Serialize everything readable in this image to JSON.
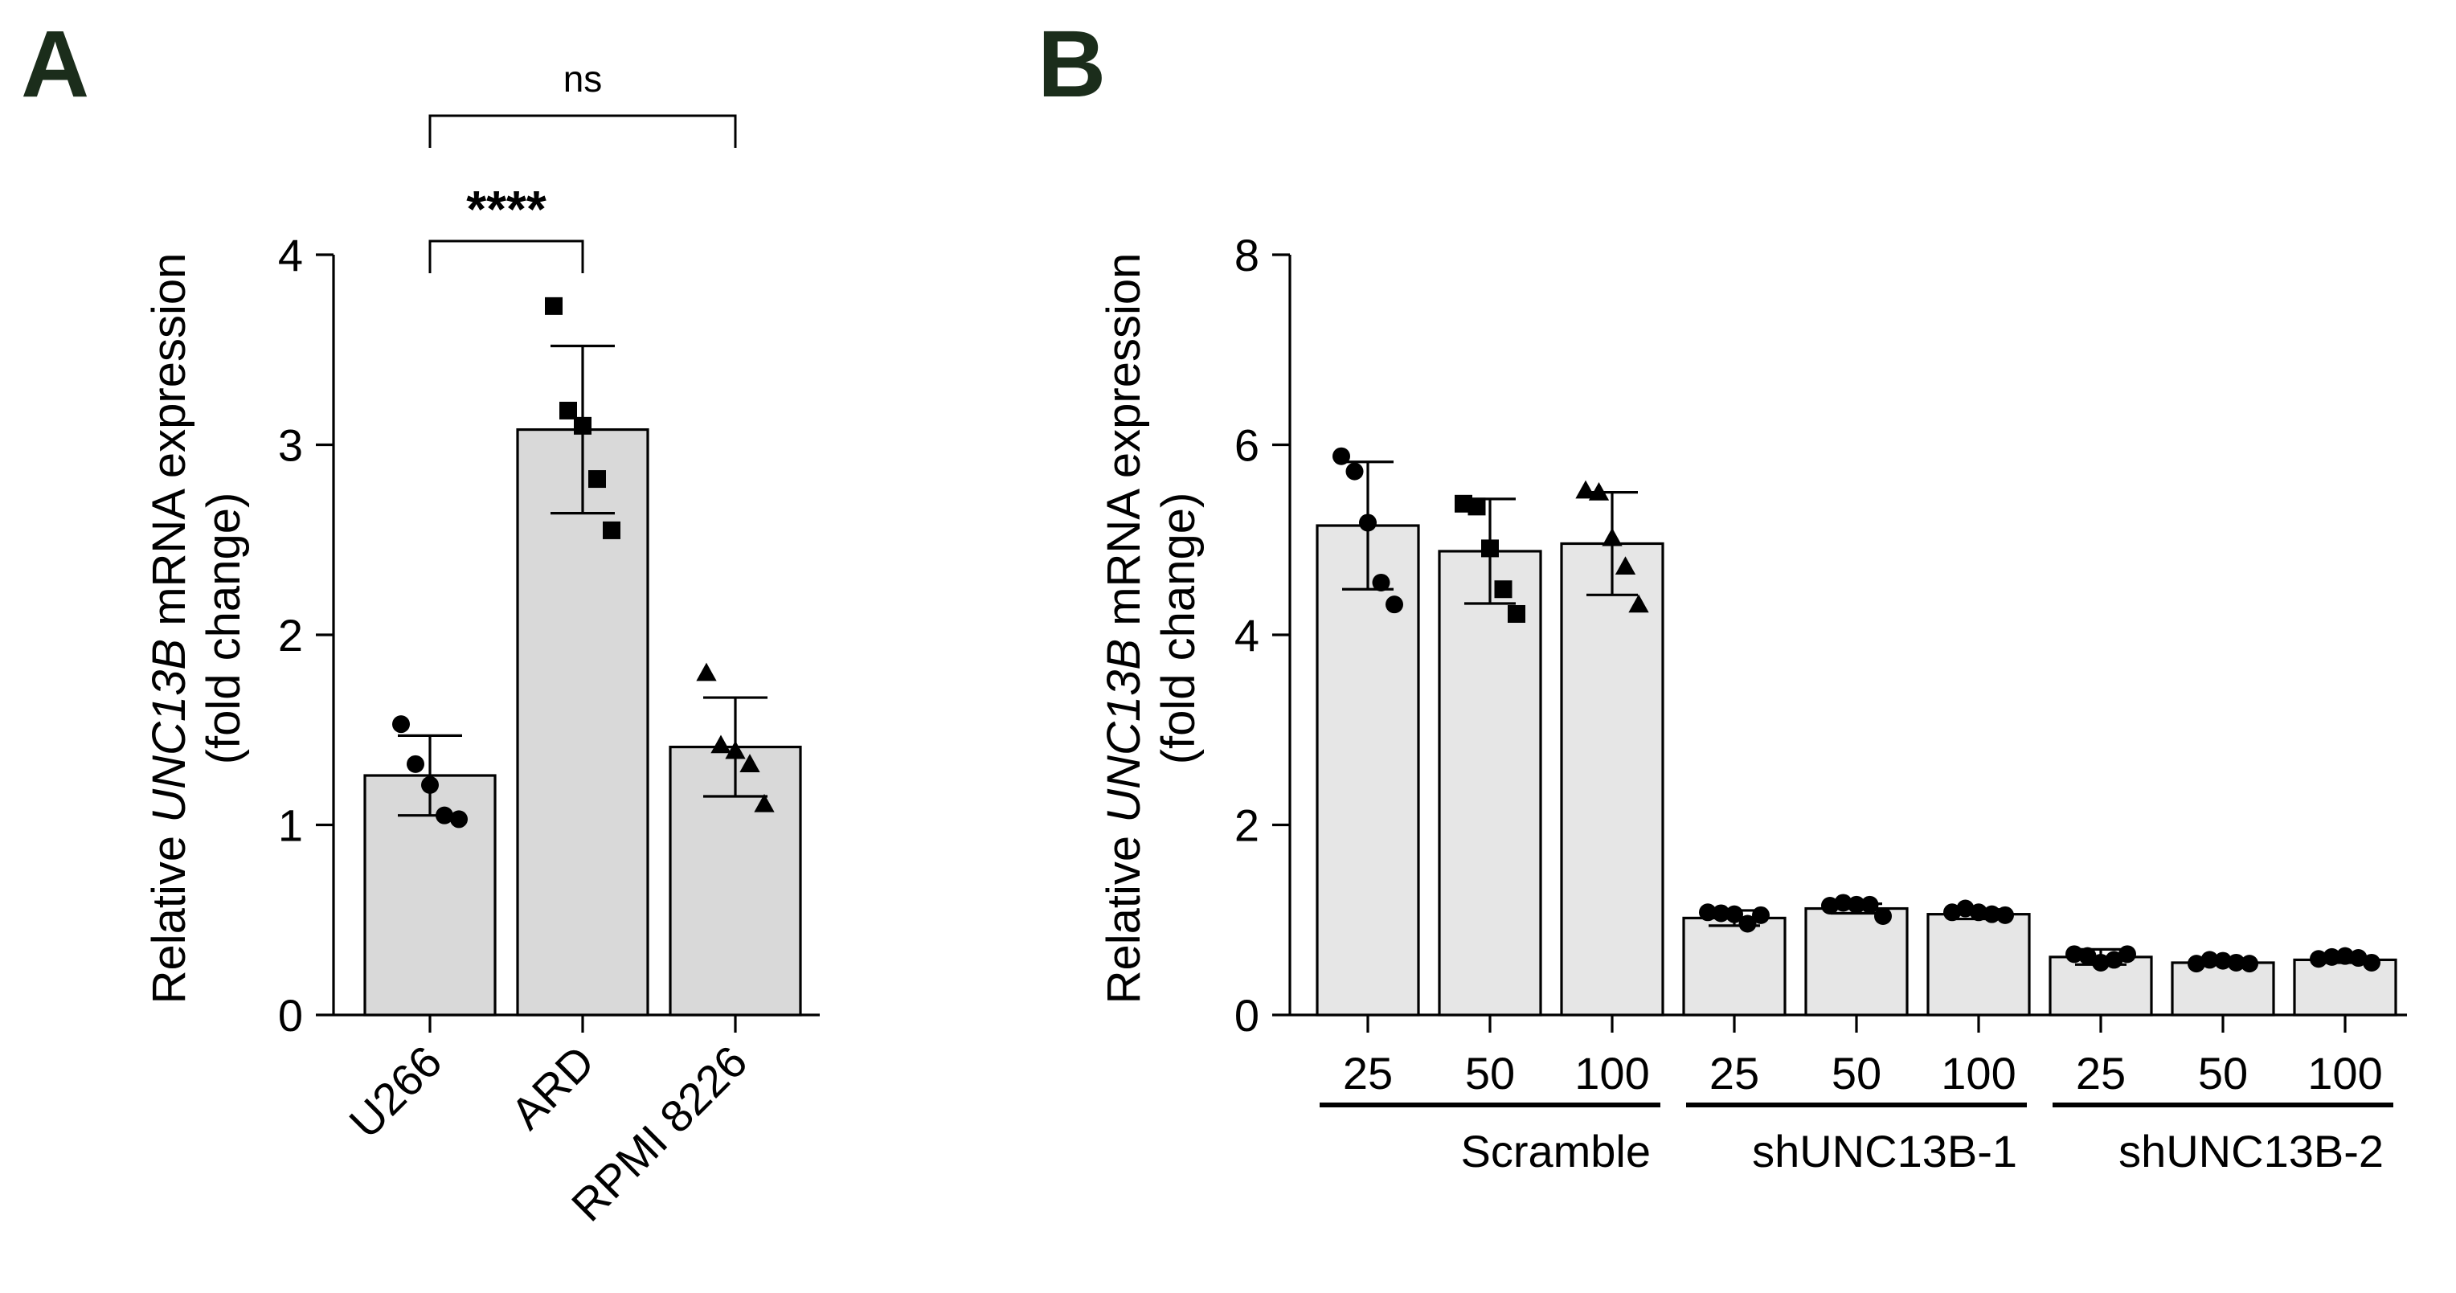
{
  "panels": {
    "a": {
      "letter": "A"
    },
    "b": {
      "letter": "B"
    }
  },
  "chart_data": [
    {
      "type": "bar",
      "panel": "A",
      "title": "",
      "xlabel": "",
      "ylabel_parts": [
        "Relative ",
        "UNC13B",
        " mRNA expression"
      ],
      "ylabel_line2": "(fold change)",
      "ylim": [
        0,
        4
      ],
      "yticks": [
        "0",
        "1",
        "2",
        "3",
        "4"
      ],
      "categories": [
        "U266",
        "ARD",
        "RPMI 8226"
      ],
      "bar_color": "#d9d9d9",
      "values": [
        1.26,
        3.08,
        1.41
      ],
      "errors": [
        0.21,
        0.44,
        0.26
      ],
      "markers": [
        "circle",
        "square",
        "triangle"
      ],
      "points": [
        [
          1.53,
          1.32,
          1.21,
          1.05,
          1.03
        ],
        [
          3.73,
          3.18,
          3.1,
          2.82,
          2.55
        ],
        [
          1.8,
          1.42,
          1.39,
          1.32,
          1.11
        ]
      ],
      "significance": [
        {
          "label": "****",
          "from": 0,
          "to": 1
        },
        {
          "label": "ns",
          "from": 0,
          "to": 2
        }
      ]
    },
    {
      "type": "bar",
      "panel": "B",
      "title": "",
      "xlabel": "",
      "ylabel_parts": [
        "Relative ",
        "UNC13B",
        " mRNA expression"
      ],
      "ylabel_line2": "(fold change)",
      "ylim": [
        0,
        8
      ],
      "yticks": [
        "0",
        "2",
        "4",
        "6",
        "8"
      ],
      "categories": [
        "25",
        "50",
        "100",
        "25",
        "50",
        "100",
        "25",
        "50",
        "100"
      ],
      "groups": [
        {
          "label": "Scramble",
          "start": 0,
          "end": 2
        },
        {
          "label": "shUNC13B-1",
          "start": 3,
          "end": 5
        },
        {
          "label": "shUNC13B-2",
          "start": 6,
          "end": 8
        }
      ],
      "bar_color": "#e6e6e6",
      "values": [
        5.15,
        4.88,
        4.96,
        1.02,
        1.12,
        1.06,
        0.61,
        0.55,
        0.58
      ],
      "errors": [
        0.67,
        0.55,
        0.54,
        0.08,
        0.05,
        0.05,
        0.08,
        0.02,
        0.03
      ],
      "markers": [
        "circle",
        "square",
        "triangle",
        "circle",
        "circle",
        "circle",
        "circle",
        "circle",
        "circle"
      ],
      "points": [
        [
          5.88,
          5.72,
          5.18,
          4.55,
          4.32
        ],
        [
          5.38,
          5.35,
          4.91,
          4.48,
          4.22
        ],
        [
          5.52,
          5.5,
          5.02,
          4.72,
          4.32
        ],
        [
          1.08,
          1.07,
          1.06,
          0.96,
          1.05
        ],
        [
          1.15,
          1.18,
          1.16,
          1.16,
          1.04
        ],
        [
          1.08,
          1.12,
          1.08,
          1.06,
          1.05
        ],
        [
          0.64,
          0.62,
          0.55,
          0.58,
          0.64
        ],
        [
          0.54,
          0.58,
          0.57,
          0.55,
          0.54
        ],
        [
          0.59,
          0.61,
          0.62,
          0.6,
          0.55
        ]
      ]
    }
  ]
}
